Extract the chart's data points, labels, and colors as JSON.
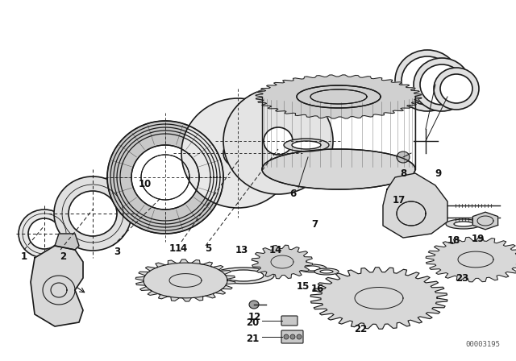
{
  "bg_color": "#ffffff",
  "diagram_color": "#1a1a1a",
  "fig_width": 6.4,
  "fig_height": 4.48,
  "watermark": "00003195",
  "dpi": 100
}
